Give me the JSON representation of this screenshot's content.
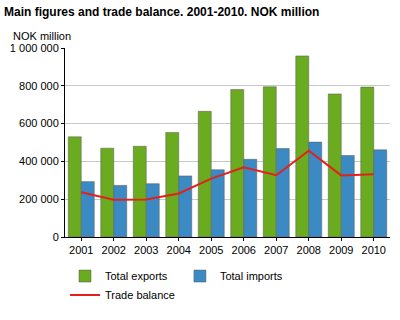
{
  "chart_data": {
    "type": "bar",
    "title": "Main figures and trade balance. 2001-2010. NOK million",
    "ylabel": "NOK million",
    "categories": [
      "2001",
      "2002",
      "2003",
      "2004",
      "2005",
      "2006",
      "2007",
      "2008",
      "2009",
      "2010"
    ],
    "series": [
      {
        "name": "Total exports",
        "type": "bar",
        "color": "#6aab1f",
        "values": [
          530000,
          470000,
          480000,
          553000,
          665000,
          780000,
          795000,
          958000,
          757000,
          793000
        ]
      },
      {
        "name": "Total imports",
        "type": "bar",
        "color": "#3b8ac4",
        "values": [
          293000,
          273000,
          282000,
          323000,
          356000,
          411000,
          468000,
          502000,
          431000,
          461000
        ]
      },
      {
        "name": "Trade balance",
        "type": "line",
        "color": "#e3201b",
        "values": [
          237000,
          197000,
          198000,
          230000,
          309000,
          369000,
          327000,
          456000,
          326000,
          332000
        ]
      }
    ],
    "ylim": [
      0,
      1000000
    ],
    "yticks": [
      0,
      {
        "value": 200000,
        "label": "200 000"
      },
      {
        "value": 400000,
        "label": "400 000"
      },
      {
        "value": 600000,
        "label": "600 000"
      },
      {
        "value": 800000,
        "label": "800 000"
      },
      {
        "value": 1000000,
        "label": "1 000 000"
      }
    ],
    "grid": true,
    "legend": "bottom"
  }
}
